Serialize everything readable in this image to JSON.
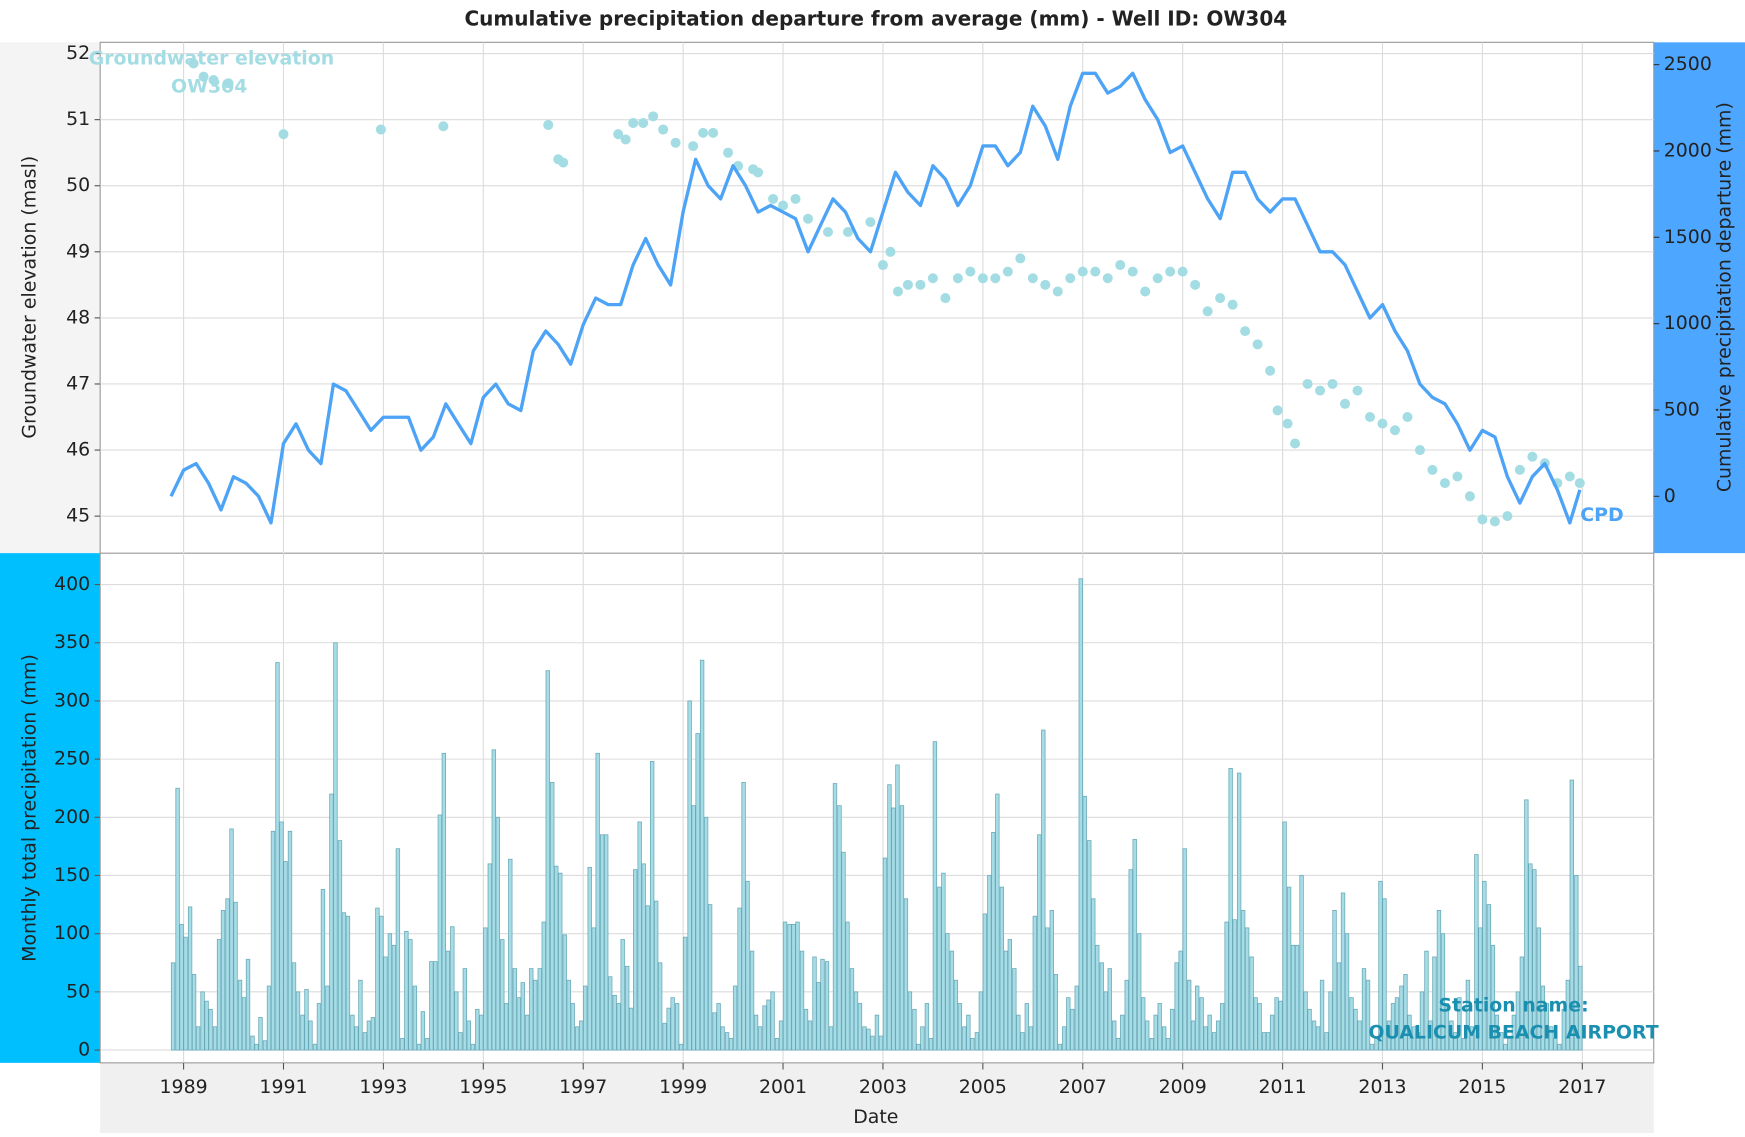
{
  "chart_data": [
    {
      "type": "line",
      "title": "Cumulative precipitation departure from average (mm) - Well ID: OW304",
      "ylabel": "Groundwater elevation (masl)",
      "y2label": "Cumulative precipitation departure (mm)",
      "xlim": [
        1987.33,
        2018.43
      ],
      "xticks": [
        1989,
        1991,
        1993,
        1995,
        1997,
        1999,
        2001,
        2003,
        2005,
        2007,
        2009,
        2011,
        2013,
        2015,
        2017
      ],
      "ylim": [
        44.44,
        52.17
      ],
      "yticks": [
        45,
        46,
        47,
        48,
        49,
        50,
        51,
        52
      ],
      "y2lim": [
        -329,
        2629
      ],
      "y2ticks": [
        0,
        500,
        1000,
        1500,
        2000,
        2500
      ],
      "grid": true,
      "series": [
        {
          "name": "Groundwater elevation",
          "well": "OW304",
          "color": "#a3dde3",
          "style": "points",
          "x": [
            1989.2,
            1989.4,
            1989.6,
            1989.9,
            1991.0,
            1992.95,
            1994.2,
            1996.3,
            1996.5,
            1996.6,
            1997.7,
            1997.85,
            1998.0,
            1998.2,
            1998.4,
            1998.6,
            1998.85,
            1999.2,
            1999.4,
            1999.6,
            1999.9,
            2000.1,
            2000.4,
            2000.5,
            2000.8,
            2001.0,
            2001.25,
            2001.5,
            2001.9,
            2002.3,
            2002.75,
            2003.0,
            2003.15,
            2003.3,
            2003.5,
            2003.75,
            2004.0,
            2004.25,
            2004.5,
            2004.75,
            2005.0,
            2005.25,
            2005.5,
            2005.75,
            2006.0,
            2006.25,
            2006.5,
            2006.75,
            2007.0,
            2007.25,
            2007.5,
            2007.75,
            2008.0,
            2008.25,
            2008.5,
            2008.75,
            2009.0,
            2009.25,
            2009.5,
            2009.75,
            2010.0,
            2010.25,
            2010.5,
            2010.75,
            2010.9,
            2011.1,
            2011.25,
            2011.5,
            2011.75,
            2012.0,
            2012.25,
            2012.5,
            2012.75,
            2013.0,
            2013.25,
            2013.5,
            2013.75,
            2014.0,
            2014.25,
            2014.5,
            2014.75,
            2015.0,
            2015.25,
            2015.5,
            2015.75,
            2016.0,
            2016.25,
            2016.5,
            2016.75,
            2016.95
          ],
          "values": [
            51.85,
            51.65,
            51.6,
            51.55,
            50.78,
            50.85,
            50.9,
            50.92,
            50.4,
            50.35,
            50.78,
            50.7,
            50.95,
            50.95,
            51.05,
            50.85,
            50.65,
            50.6,
            50.8,
            50.8,
            50.5,
            50.3,
            50.25,
            50.2,
            49.8,
            49.7,
            49.8,
            49.5,
            49.3,
            49.3,
            49.45,
            48.8,
            49.0,
            48.4,
            48.5,
            48.5,
            48.6,
            48.3,
            48.6,
            48.7,
            48.6,
            48.6,
            48.7,
            48.9,
            48.6,
            48.5,
            48.4,
            48.6,
            48.7,
            48.7,
            48.6,
            48.8,
            48.7,
            48.4,
            48.6,
            48.7,
            48.7,
            48.5,
            48.1,
            48.3,
            48.2,
            47.8,
            47.6,
            47.2,
            46.6,
            46.4,
            46.1,
            47.0,
            46.9,
            47.0,
            46.7,
            46.9,
            46.5,
            46.4,
            46.3,
            46.5,
            46.0,
            45.7,
            45.5,
            45.6,
            45.3,
            44.95,
            44.92,
            45.0,
            45.7,
            45.9,
            45.8,
            45.5,
            45.6,
            45.5
          ]
        },
        {
          "name": "CPD",
          "color": "#4da3f5",
          "style": "line",
          "axis": "y2",
          "x": [
            1988.75,
            1989.0,
            1989.25,
            1989.5,
            1989.75,
            1990.0,
            1990.25,
            1990.5,
            1990.75,
            1991.0,
            1991.25,
            1991.5,
            1991.75,
            1992.0,
            1992.25,
            1992.5,
            1992.75,
            1993.0,
            1993.25,
            1993.5,
            1993.75,
            1994.0,
            1994.25,
            1994.5,
            1994.75,
            1995.0,
            1995.25,
            1995.5,
            1995.75,
            1996.0,
            1996.25,
            1996.5,
            1996.75,
            1997.0,
            1997.25,
            1997.5,
            1997.75,
            1998.0,
            1998.25,
            1998.5,
            1998.75,
            1999.0,
            1999.25,
            1999.5,
            1999.75,
            2000.0,
            2000.25,
            2000.5,
            2000.75,
            2001.0,
            2001.25,
            2001.5,
            2001.75,
            2002.0,
            2002.25,
            2002.5,
            2002.75,
            2003.0,
            2003.25,
            2003.5,
            2003.75,
            2004.0,
            2004.25,
            2004.5,
            2004.75,
            2005.0,
            2005.25,
            2005.5,
            2005.75,
            2006.0,
            2006.25,
            2006.5,
            2006.75,
            2007.0,
            2007.25,
            2007.5,
            2007.75,
            2008.0,
            2008.25,
            2008.5,
            2008.75,
            2009.0,
            2009.25,
            2009.5,
            2009.75,
            2010.0,
            2010.25,
            2010.5,
            2010.75,
            2011.0,
            2011.25,
            2011.5,
            2011.75,
            2012.0,
            2012.25,
            2012.5,
            2012.75,
            2013.0,
            2013.25,
            2013.5,
            2013.75,
            2014.0,
            2014.25,
            2014.5,
            2014.75,
            2015.0,
            2015.25,
            2015.5,
            2015.75,
            2016.0,
            2016.25,
            2016.5,
            2016.75,
            2016.95
          ],
          "values": [
            0,
            152,
            190,
            76,
            -78,
            114,
            76,
            0,
            -154,
            305,
            420,
            267,
            190,
            650,
            611,
            497,
            382,
            458,
            458,
            458,
            267,
            344,
            535,
            420,
            305,
            573,
            650,
            535,
            497,
            842,
            957,
            880,
            765,
            995,
            1148,
            1110,
            1110,
            1340,
            1493,
            1340,
            1224,
            1646,
            1952,
            1799,
            1722,
            1914,
            1799,
            1646,
            1684,
            1646,
            1608,
            1416,
            1570,
            1722,
            1646,
            1493,
            1416,
            1646,
            1876,
            1761,
            1684,
            1914,
            1837,
            1684,
            1799,
            2029,
            2029,
            1914,
            1991,
            2259,
            2144,
            1952,
            2259,
            2450,
            2450,
            2335,
            2374,
            2450,
            2297,
            2182,
            1991,
            2029,
            1876,
            1722,
            1608,
            1876,
            1876,
            1722,
            1646,
            1722,
            1722,
            1570,
            1416,
            1416,
            1340,
            1186,
            1033,
            1110,
            957,
            842,
            650,
            573,
            535,
            420,
            267,
            382,
            344,
            114,
            -39,
            114,
            190,
            38,
            -154,
            38
          ]
        }
      ]
    },
    {
      "type": "bar",
      "ylabel": "Monthly total precipitation (mm)",
      "xlabel": "Date",
      "station_label": "Station name:",
      "station": "QUALICUM BEACH AIRPORT",
      "color": "#a6dce6",
      "xlim": [
        1987.33,
        2018.43
      ],
      "xticks": [
        1989,
        1991,
        1993,
        1995,
        1997,
        1999,
        2001,
        2003,
        2005,
        2007,
        2009,
        2011,
        2013,
        2015,
        2017
      ],
      "ylim": [
        -11,
        427
      ],
      "yticks": [
        0,
        50,
        100,
        150,
        200,
        250,
        300,
        350,
        400
      ],
      "grid": true,
      "x": [
        1988.79,
        1988.88,
        1988.96,
        1989.04,
        1989.13,
        1989.21,
        1989.29,
        1989.38,
        1989.46,
        1989.54,
        1989.63,
        1989.71,
        1989.79,
        1989.88,
        1989.96,
        1990.04,
        1990.13,
        1990.21,
        1990.29,
        1990.38,
        1990.46,
        1990.54,
        1990.63,
        1990.71,
        1990.79,
        1990.88,
        1990.96,
        1991.04,
        1991.13,
        1991.21,
        1991.29,
        1991.38,
        1991.46,
        1991.54,
        1991.63,
        1991.71,
        1991.79,
        1991.88,
        1991.96,
        1992.04,
        1992.13,
        1992.21,
        1992.29,
        1992.38,
        1992.46,
        1992.54,
        1992.63,
        1992.71,
        1992.79,
        1992.88,
        1992.96,
        1993.04,
        1993.13,
        1993.21,
        1993.29,
        1993.38,
        1993.46,
        1993.54,
        1993.63,
        1993.71,
        1993.79,
        1993.88,
        1993.96,
        1994.04,
        1994.13,
        1994.21,
        1994.29,
        1994.38,
        1994.46,
        1994.54,
        1994.63,
        1994.71,
        1994.79,
        1994.88,
        1994.96,
        1995.04,
        1995.13,
        1995.21,
        1995.29,
        1995.38,
        1995.46,
        1995.54,
        1995.63,
        1995.71,
        1995.79,
        1995.88,
        1995.96,
        1996.04,
        1996.13,
        1996.21,
        1996.29,
        1996.38,
        1996.46,
        1996.54,
        1996.63,
        1996.71,
        1996.79,
        1996.88,
        1996.96,
        1997.04,
        1997.13,
        1997.21,
        1997.29,
        1997.38,
        1997.46,
        1997.54,
        1997.63,
        1997.71,
        1997.79,
        1997.88,
        1997.96,
        1998.04,
        1998.13,
        1998.21,
        1998.29,
        1998.38,
        1998.46,
        1998.54,
        1998.63,
        1998.71,
        1998.79,
        1998.88,
        1998.96,
        1999.04,
        1999.13,
        1999.21,
        1999.29,
        1999.38,
        1999.46,
        1999.54,
        1999.63,
        1999.71,
        1999.79,
        1999.88,
        1999.96,
        2000.04,
        2000.13,
        2000.21,
        2000.29,
        2000.38,
        2000.46,
        2000.54,
        2000.63,
        2000.71,
        2000.79,
        2000.88,
        2000.96,
        2001.04,
        2001.13,
        2001.21,
        2001.29,
        2001.38,
        2001.46,
        2001.54,
        2001.63,
        2001.71,
        2001.79,
        2001.88,
        2001.96,
        2002.04,
        2002.13,
        2002.21,
        2002.29,
        2002.38,
        2002.46,
        2002.54,
        2002.63,
        2002.71,
        2002.79,
        2002.88,
        2002.96,
        2003.04,
        2003.13,
        2003.21,
        2003.29,
        2003.38,
        2003.46,
        2003.54,
        2003.63,
        2003.71,
        2003.79,
        2003.88,
        2003.96,
        2004.04,
        2004.13,
        2004.21,
        2004.29,
        2004.38,
        2004.46,
        2004.54,
        2004.63,
        2004.71,
        2004.79,
        2004.88,
        2004.96,
        2005.04,
        2005.13,
        2005.21,
        2005.29,
        2005.38,
        2005.46,
        2005.54,
        2005.63,
        2005.71,
        2005.79,
        2005.88,
        2005.96,
        2006.04,
        2006.13,
        2006.21,
        2006.29,
        2006.38,
        2006.46,
        2006.54,
        2006.63,
        2006.71,
        2006.79,
        2006.88,
        2006.96,
        2007.04,
        2007.13,
        2007.21,
        2007.29,
        2007.38,
        2007.46,
        2007.54,
        2007.63,
        2007.71,
        2007.79,
        2007.88,
        2007.96,
        2008.04,
        2008.13,
        2008.21,
        2008.29,
        2008.38,
        2008.46,
        2008.54,
        2008.63,
        2008.71,
        2008.79,
        2008.88,
        2008.96,
        2009.04,
        2009.13,
        2009.21,
        2009.29,
        2009.38,
        2009.46,
        2009.54,
        2009.63,
        2009.71,
        2009.79,
        2009.88,
        2009.96,
        2010.04,
        2010.13,
        2010.21,
        2010.29,
        2010.38,
        2010.46,
        2010.54,
        2010.63,
        2010.71,
        2010.79,
        2010.88,
        2010.96,
        2011.04,
        2011.13,
        2011.21,
        2011.29,
        2011.38,
        2011.46,
        2011.54,
        2011.63,
        2011.71,
        2011.79,
        2011.88,
        2011.96,
        2012.04,
        2012.13,
        2012.21,
        2012.29,
        2012.38,
        2012.46,
        2012.54,
        2012.63,
        2012.71,
        2012.79,
        2012.88,
        2012.96,
        2013.04,
        2013.13,
        2013.21,
        2013.29,
        2013.38,
        2013.46,
        2013.54,
        2013.63,
        2013.71,
        2013.79,
        2013.88,
        2013.96,
        2014.04,
        2014.13,
        2014.21,
        2014.29,
        2014.38,
        2014.46,
        2014.54,
        2014.63,
        2014.71,
        2014.79,
        2014.88,
        2014.96,
        2015.04,
        2015.13,
        2015.21,
        2015.29,
        2015.38,
        2015.46,
        2015.54,
        2015.63,
        2015.71,
        2015.79,
        2015.88,
        2015.96,
        2016.04,
        2016.13,
        2016.21,
        2016.29,
        2016.38,
        2016.46,
        2016.54,
        2016.63,
        2016.71,
        2016.79,
        2016.88,
        2016.96
      ],
      "values": [
        75,
        225,
        108,
        97,
        123,
        65,
        20,
        50,
        42,
        35,
        20,
        95,
        120,
        130,
        190,
        127,
        60,
        45,
        78,
        12,
        5,
        28,
        8,
        55,
        188,
        333,
        196,
        162,
        188,
        75,
        50,
        30,
        52,
        25,
        5,
        40,
        138,
        55,
        220,
        350,
        180,
        118,
        115,
        30,
        20,
        60,
        15,
        25,
        28,
        122,
        115,
        80,
        100,
        90,
        173,
        10,
        102,
        95,
        55,
        5,
        33,
        10,
        76,
        76,
        202,
        255,
        85,
        106,
        50,
        15,
        70,
        25,
        5,
        35,
        30,
        105,
        160,
        258,
        200,
        95,
        40,
        164,
        70,
        45,
        58,
        30,
        70,
        60,
        70,
        110,
        326,
        230,
        158,
        152,
        99,
        60,
        40,
        20,
        25,
        55,
        157,
        105,
        255,
        185,
        185,
        63,
        47,
        40,
        95,
        72,
        36,
        155,
        196,
        160,
        124,
        248,
        128,
        75,
        23,
        36,
        45,
        40,
        5,
        97,
        300,
        210,
        272,
        335,
        200,
        125,
        32,
        40,
        20,
        15,
        10,
        55,
        122,
        230,
        145,
        85,
        30,
        20,
        38,
        43,
        50,
        10,
        25,
        110,
        108,
        108,
        110,
        85,
        35,
        25,
        80,
        58,
        78,
        76,
        20,
        229,
        210,
        170,
        110,
        70,
        50,
        40,
        20,
        18,
        12,
        30,
        12,
        165,
        228,
        208,
        245,
        210,
        130,
        50,
        35,
        5,
        20,
        40,
        10,
        265,
        140,
        152,
        100,
        85,
        60,
        40,
        20,
        30,
        10,
        15,
        50,
        117,
        150,
        187,
        220,
        140,
        85,
        95,
        70,
        30,
        15,
        40,
        20,
        115,
        185,
        275,
        105,
        120,
        65,
        5,
        20,
        45,
        35,
        55,
        405,
        218,
        180,
        130,
        90,
        75,
        50,
        70,
        25,
        10,
        30,
        60,
        155,
        181,
        100,
        45,
        25,
        10,
        30,
        40,
        20,
        10,
        35,
        75,
        85,
        173,
        60,
        25,
        55,
        45,
        20,
        30,
        15,
        25,
        40,
        110,
        242,
        112,
        238,
        120,
        105,
        80,
        45,
        40,
        15,
        15,
        30,
        45,
        42,
        196,
        140,
        90,
        90,
        150,
        50,
        35,
        25,
        20,
        60,
        15,
        50,
        120,
        75,
        135,
        100,
        45,
        35,
        25,
        70,
        60,
        5,
        10,
        145,
        130,
        25,
        40,
        45,
        55,
        65,
        30,
        20,
        15,
        50,
        85,
        25,
        80,
        120,
        100,
        40,
        25,
        15,
        45,
        10,
        60,
        20,
        168,
        105,
        145,
        125,
        90,
        30,
        15,
        5,
        10,
        30,
        50,
        80,
        215,
        160,
        155,
        105,
        55,
        40,
        20,
        10,
        5,
        35,
        60,
        232,
        150,
        72
      ]
    }
  ]
}
